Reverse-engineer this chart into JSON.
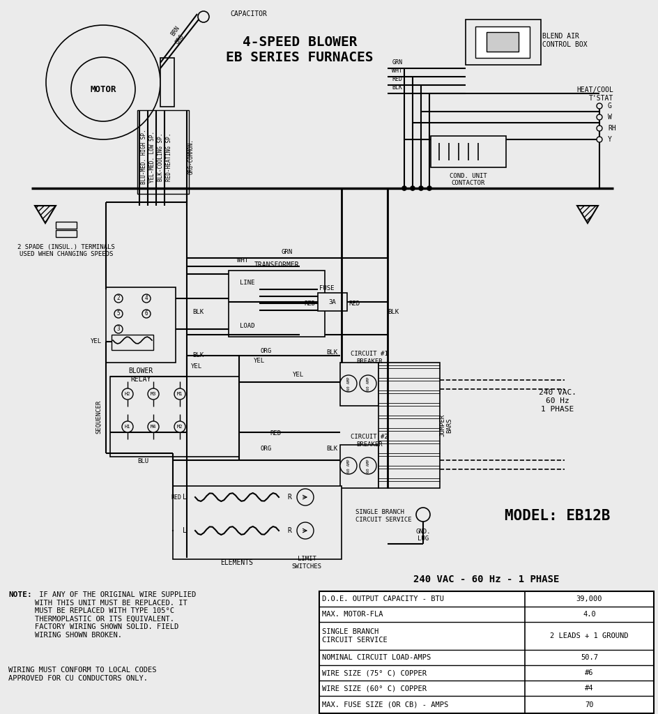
{
  "title": "4-SPEED BLOWER\nEB SERIES FURNACES",
  "model": "MODEL: EB12B",
  "table_title": "240 VAC - 60 Hz - 1 PHASE",
  "table_rows": [
    [
      "D.O.E. OUTPUT CAPACITY - BTU",
      "39,000"
    ],
    [
      "MAX. MOTOR-FLA",
      "4.0"
    ],
    [
      "SINGLE BRANCH\nCIRCUIT SERVICE",
      "2 LEADS + 1 GROUND"
    ],
    [
      "NOMINAL CIRCUIT LOAD-AMPS",
      "50.7"
    ],
    [
      "WIRE SIZE (75° C) COPPER",
      "#6"
    ],
    [
      "WIRE SIZE (60° C) COPPER",
      "#4"
    ],
    [
      "MAX. FUSE SIZE (OR CB) - AMPS",
      "70"
    ]
  ],
  "note_bold": "NOTE:",
  "note_text": " IF ANY OF THE ORIGINAL WIRE SUPPLIED\nWITH THIS UNIT MUST BE REPLACED. IT\nMUST BE REPLACED WITH TYPE 105°C\nTHERMOPLASTIC OR ITS EQUIVALENT.\nFACTORY WIRING SHOWN SOLID. FIELD\nWIRING SHOWN BROKEN.",
  "note_text2": "WIRING MUST CONFORM TO LOCAL CODES\nAPPROVED FOR CU CONDUCTORS ONLY.",
  "bg_color": "#ebebeb",
  "line_color": "#000000"
}
